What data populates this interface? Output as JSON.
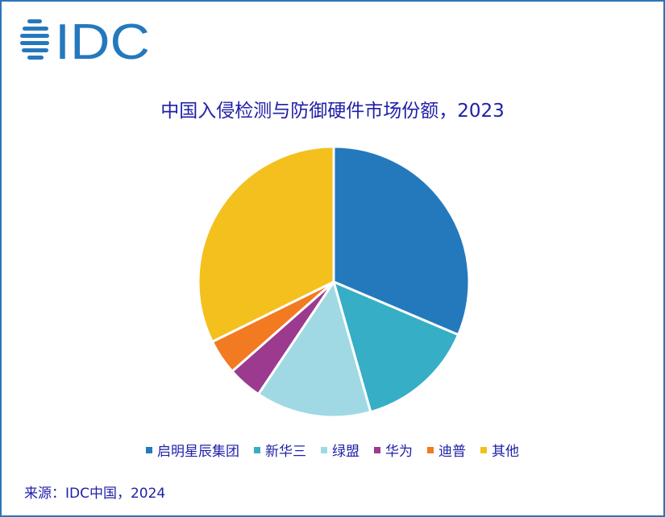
{
  "logo_text": "IDC",
  "chart_data": {
    "type": "pie",
    "title": "中国入侵检测与防御硬件市场份额，2023",
    "categories": [
      "启明星辰集团",
      "新华三",
      "绿盟",
      "华为",
      "迪普",
      "其他"
    ],
    "values": [
      31.4,
      14.2,
      13.8,
      4.1,
      4.2,
      32.3
    ],
    "unit": "%",
    "colors": [
      "#2479bd",
      "#36aec5",
      "#a0d9e4",
      "#9b3a8f",
      "#f27a21",
      "#f3c01e"
    ],
    "start_angle": "12 o'clock",
    "direction": "clockwise",
    "legend_position": "bottom"
  },
  "source": "来源：IDC中国，2024"
}
